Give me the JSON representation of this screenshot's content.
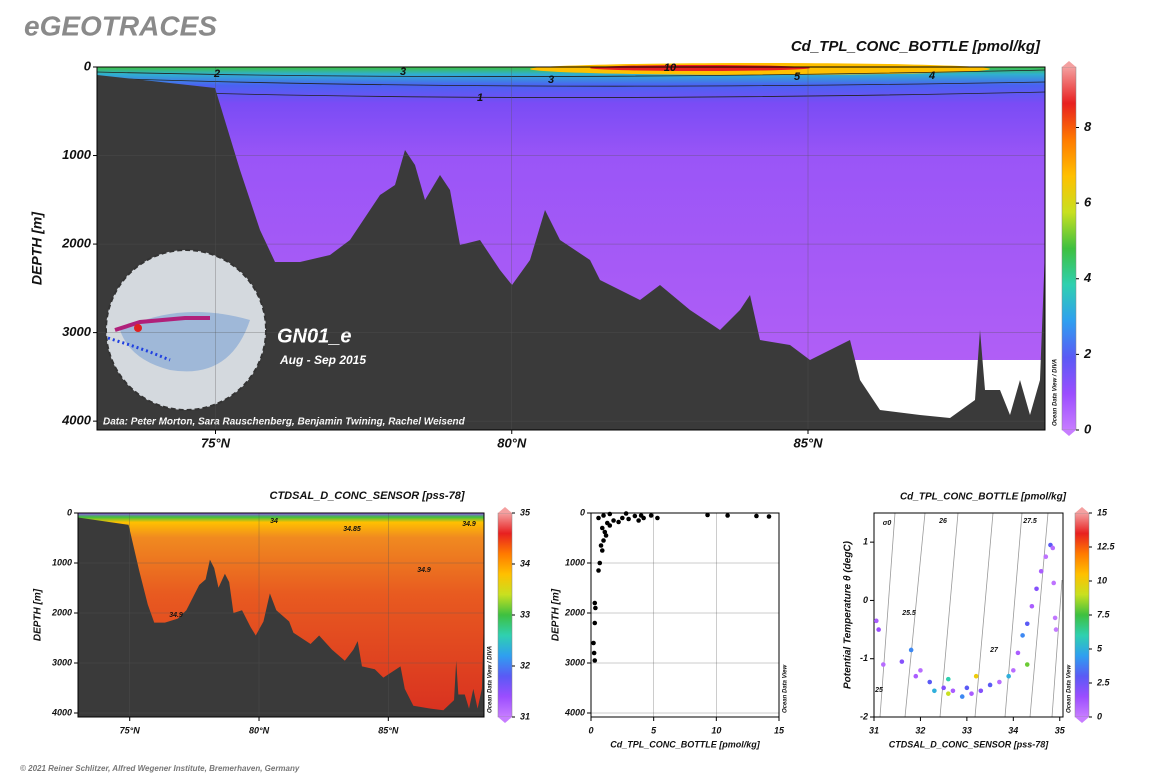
{
  "header": "eGEOTRACES",
  "footer": "© 2021 Reiner Schlitzer, Alfred Wegener Institute, Bremerhaven, Germany",
  "colormap": [
    "#c77dff",
    "#9b4dff",
    "#5a5af5",
    "#2f9ff0",
    "#2fd0b0",
    "#3ec040",
    "#c8e020",
    "#ffc000",
    "#ff7a00",
    "#e82020",
    "#f4a0a0"
  ],
  "chart_data": [
    {
      "type": "section",
      "title": "Cd_TPL_CONC_BOTTLE [pmol/kg]",
      "ylabel": "DEPTH [m]",
      "xlim": [
        73,
        89
      ],
      "ylim": [
        4100,
        0
      ],
      "yticks": [
        0,
        1000,
        2000,
        3000,
        4000
      ],
      "xticks": [
        {
          "value": 75,
          "label": "75°N"
        },
        {
          "value": 80,
          "label": "80°N"
        },
        {
          "value": 85,
          "label": "85°N"
        }
      ],
      "grid": true,
      "colorbar": {
        "lim": [
          0,
          9.6
        ],
        "ticks": [
          0,
          2,
          4,
          6,
          8
        ]
      },
      "side_label": "Ocean Data View / DIVA",
      "contour_labels": [
        "2",
        "3",
        "3",
        "1",
        "10",
        "5",
        "4"
      ],
      "cruise": "GN01_e",
      "dates": "Aug - Sep 2015",
      "credit": "Data: Peter Morton, Sara Rauschenberg, Benjamin Twining, Rachel Weisend"
    },
    {
      "type": "section",
      "title": "CTDSAL_D_CONC_SENSOR [pss-78]",
      "ylabel": "DEPTH [m]",
      "xlim": [
        73,
        88.7
      ],
      "ylim": [
        4080,
        0
      ],
      "yticks": [
        0,
        1000,
        2000,
        3000,
        4000
      ],
      "xticks": [
        {
          "value": 75,
          "label": "75°N"
        },
        {
          "value": 80,
          "label": "80°N"
        },
        {
          "value": 85,
          "label": "85°N"
        }
      ],
      "grid": true,
      "colorbar": {
        "lim": [
          31,
          35
        ],
        "ticks": [
          31,
          32,
          33,
          34,
          35
        ]
      },
      "side_label": "Ocean Data View / DIVA",
      "contour_labels": [
        "34",
        "34.85",
        "34.9",
        "34.9",
        "34.9"
      ]
    },
    {
      "type": "scatter",
      "xlabel": "Cd_TPL_CONC_BOTTLE [pmol/kg]",
      "ylabel": "DEPTH [m]",
      "xlim": [
        0,
        15
      ],
      "ylim": [
        4080,
        0
      ],
      "xticks": [
        0,
        5,
        10,
        15
      ],
      "yticks": [
        0,
        1000,
        2000,
        3000,
        4000
      ],
      "grid": true,
      "color": "#000000",
      "side_label": "Ocean Data View",
      "x": [
        0.3,
        0.25,
        0.2,
        0.3,
        0.35,
        0.3,
        0.6,
        0.7,
        0.9,
        0.8,
        1.0,
        1.2,
        1.1,
        1.5,
        1.3,
        1.8,
        2.5,
        2.2,
        3.0,
        3.5,
        3.8,
        4.2,
        4.8,
        5.3,
        4.0,
        1.0,
        1.5,
        2.8,
        9.3,
        10.9,
        13.2,
        14.2,
        0.6,
        0.9
      ],
      "values": [
        2950,
        2800,
        2600,
        2200,
        1900,
        1800,
        1150,
        1000,
        750,
        650,
        550,
        450,
        380,
        250,
        200,
        150,
        100,
        180,
        120,
        60,
        150,
        100,
        50,
        100,
        50,
        50,
        20,
        10,
        40,
        50,
        60,
        70,
        100,
        300
      ]
    },
    {
      "type": "scatter",
      "title": "Cd_TPL_CONC_BOTTLE [pmol/kg]",
      "xlabel": "CTDSAL_D_CONC_SENSOR [pss-78]",
      "ylabel": "Potential Temperature θ (degC)",
      "xlim": [
        31,
        35.07
      ],
      "ylim": [
        -2,
        1.5
      ],
      "xticks": [
        31,
        32,
        33,
        34,
        35
      ],
      "yticks": [
        -2,
        -1,
        0,
        1
      ],
      "grid": false,
      "side_label": "Ocean Data View",
      "colorbar": {
        "lim": [
          0,
          15
        ],
        "ticks": [
          0,
          2.5,
          5,
          7.5,
          10,
          12.5,
          15
        ]
      },
      "contour_labels": [
        "σ0",
        "25",
        "25.5",
        "26",
        "27",
        "27.5"
      ],
      "x": [
        31.05,
        31.1,
        31.2,
        31.6,
        31.8,
        31.9,
        32.0,
        32.2,
        32.3,
        32.5,
        32.6,
        32.7,
        32.9,
        33.0,
        33.1,
        33.3,
        33.5,
        33.7,
        33.9,
        34.0,
        34.1,
        34.2,
        34.3,
        34.4,
        34.5,
        34.6,
        34.7,
        34.8,
        34.85,
        34.87,
        34.9,
        34.92,
        34.3,
        33.2,
        32.6
      ],
      "values": [
        -0.35,
        -0.5,
        -1.1,
        -1.05,
        -0.85,
        -1.3,
        -1.2,
        -1.4,
        -1.55,
        -1.5,
        -1.6,
        -1.55,
        -1.65,
        -1.5,
        -1.6,
        -1.55,
        -1.45,
        -1.4,
        -1.3,
        -1.2,
        -0.9,
        -0.6,
        -0.4,
        -0.1,
        0.2,
        0.5,
        0.75,
        0.95,
        0.9,
        0.3,
        -0.3,
        -0.5,
        -1.1,
        -1.3,
        -1.35
      ],
      "c": [
        1,
        1.5,
        0.5,
        2,
        4,
        1,
        0.5,
        3,
        5,
        2,
        9,
        1,
        4,
        3,
        1,
        2,
        3,
        0.5,
        5,
        0.5,
        1,
        4,
        3,
        1,
        2,
        1,
        0.3,
        3,
        0.5,
        0.3,
        0.2,
        0.1,
        8,
        10,
        6
      ]
    }
  ]
}
